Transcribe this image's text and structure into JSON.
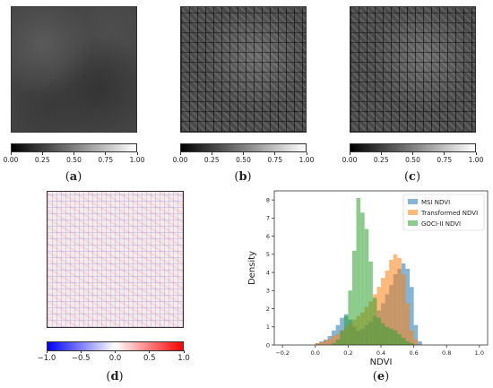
{
  "panels": {
    "a": {
      "label": "a"
    },
    "b": {
      "label": "b"
    },
    "c": {
      "label": "c"
    },
    "d": {
      "label": "d"
    },
    "e": {
      "label": "e"
    }
  },
  "colorbar_gray": {
    "ticks": [
      "0.00",
      "0.25",
      "0.50",
      "0.75",
      "1.00"
    ]
  },
  "colorbar_diff": {
    "ticks": [
      "−1.0",
      "−0.5",
      "0.0",
      "0.5",
      "1.0"
    ]
  },
  "colors": {
    "msi": "#1f77b4",
    "transformed": "#ff7f0e",
    "goci": "#2ca02c"
  },
  "chart_data": {
    "type": "bar",
    "xlabel": "NDVI",
    "ylabel": "Density",
    "xlim": [
      -0.25,
      1.05
    ],
    "ylim": [
      0,
      8.5
    ],
    "x_ticks": [
      "−0.2",
      "0.0",
      "0.2",
      "0.4",
      "0.6",
      "0.8",
      "1.0"
    ],
    "y_ticks": [
      "0",
      "1",
      "2",
      "3",
      "4",
      "5",
      "6",
      "7",
      "8"
    ],
    "legend_position": "top-right",
    "bin_width": 0.025,
    "series": [
      {
        "name": "MSI NDVI",
        "color": "#1f77b4",
        "bins_start": [
          0.0,
          0.025,
          0.05,
          0.075,
          0.1,
          0.125,
          0.15,
          0.175,
          0.2,
          0.225,
          0.25,
          0.275,
          0.3,
          0.325,
          0.35,
          0.375,
          0.4,
          0.425,
          0.45,
          0.475,
          0.5,
          0.525,
          0.55,
          0.575,
          0.6,
          0.625
        ],
        "values": [
          0.1,
          0.2,
          0.3,
          0.5,
          0.8,
          1.1,
          1.5,
          1.7,
          1.4,
          1.0,
          0.8,
          0.9,
          1.1,
          1.3,
          1.6,
          1.9,
          2.3,
          2.8,
          3.3,
          3.9,
          4.2,
          4.5,
          4.2,
          3.2,
          1.1,
          0.2
        ]
      },
      {
        "name": "Transformed NDVI",
        "color": "#ff7f0e",
        "bins_start": [
          0.0,
          0.025,
          0.05,
          0.075,
          0.1,
          0.125,
          0.15,
          0.175,
          0.2,
          0.225,
          0.25,
          0.275,
          0.3,
          0.325,
          0.35,
          0.375,
          0.4,
          0.425,
          0.45,
          0.475,
          0.5,
          0.525,
          0.55,
          0.575,
          0.6
        ],
        "values": [
          0.1,
          0.15,
          0.25,
          0.35,
          0.5,
          0.6,
          0.8,
          1.0,
          1.2,
          1.4,
          1.6,
          1.8,
          2.1,
          2.4,
          2.8,
          3.2,
          3.7,
          4.1,
          4.7,
          5.0,
          4.8,
          3.9,
          2.3,
          0.8,
          0.3
        ]
      },
      {
        "name": "GOCI-II NDVI",
        "color": "#2ca02c",
        "bins_start": [
          0.1,
          0.125,
          0.15,
          0.175,
          0.2,
          0.225,
          0.25,
          0.275,
          0.3,
          0.325,
          0.35,
          0.375,
          0.4,
          0.425,
          0.45,
          0.475,
          0.5,
          0.525,
          0.55,
          0.575
        ],
        "values": [
          0.1,
          0.3,
          0.8,
          1.6,
          3.0,
          5.2,
          8.1,
          7.3,
          6.4,
          4.6,
          2.6,
          1.5,
          1.2,
          1.0,
          0.9,
          0.8,
          0.6,
          0.4,
          0.2,
          0.1
        ]
      }
    ]
  }
}
